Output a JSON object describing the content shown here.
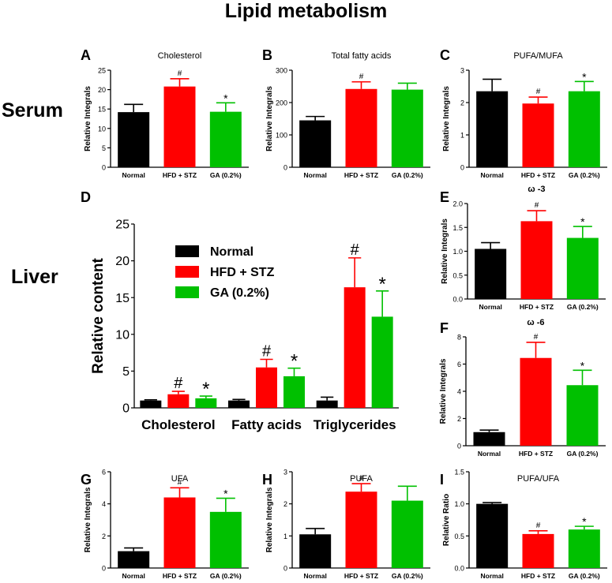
{
  "figure_title": "Lipid metabolism",
  "row_labels": {
    "serum": "Serum",
    "liver": "Liver"
  },
  "colors": {
    "normal": "#000000",
    "hfd": "#ff0000",
    "ga": "#00c000",
    "axis": "#000000"
  },
  "chart_data": [
    {
      "id": "A",
      "type": "bar",
      "letter": "A",
      "title": "Cholesterol",
      "categories": [
        "Normal",
        "HFD + STZ",
        "GA (0.2%)"
      ],
      "values": [
        14.2,
        20.8,
        14.3
      ],
      "errors": [
        2.0,
        2.0,
        2.3
      ],
      "marks": [
        "",
        "#",
        "*"
      ],
      "ylabel": "Relative Integrals",
      "ylim": [
        0,
        25
      ],
      "yticks": [
        0,
        5,
        10,
        15,
        20,
        25
      ],
      "ytick_labels": [
        "0",
        "5",
        "10",
        "15",
        "20",
        "25"
      ]
    },
    {
      "id": "B",
      "type": "bar",
      "letter": "B",
      "title": "Total fatty acids",
      "categories": [
        "Normal",
        "HFD + STZ",
        "GA (0.2%)"
      ],
      "values": [
        145,
        242,
        240
      ],
      "errors": [
        12,
        22,
        20
      ],
      "marks": [
        "",
        "#",
        ""
      ],
      "ylabel": "Relative Integrals",
      "ylim": [
        0,
        300
      ],
      "yticks": [
        0,
        100,
        200,
        300
      ],
      "ytick_labels": [
        "0",
        "100",
        "200",
        "300"
      ]
    },
    {
      "id": "C",
      "type": "bar",
      "letter": "C",
      "title": "PUFA/MUFA",
      "categories": [
        "Normal",
        "HFD + STZ",
        "GA (0.2%)"
      ],
      "values": [
        2.35,
        1.97,
        2.35
      ],
      "errors": [
        0.37,
        0.2,
        0.3
      ],
      "marks": [
        "",
        "#",
        "*"
      ],
      "ylabel": "Relative Integrals",
      "ylim": [
        0,
        3
      ],
      "yticks": [
        0,
        1,
        2,
        3
      ],
      "ytick_labels": [
        "0",
        "1",
        "2",
        "3"
      ]
    },
    {
      "id": "D",
      "type": "bar",
      "letter": "D",
      "title": "",
      "categories": [
        "Cholesterol",
        "Fatty acids",
        "Triglycerides"
      ],
      "series": [
        {
          "name": "Normal",
          "values": [
            1.0,
            1.0,
            1.0
          ],
          "errors": [
            0.1,
            0.15,
            0.45
          ],
          "marks": [
            "",
            "",
            ""
          ]
        },
        {
          "name": "HFD + STZ",
          "values": [
            1.85,
            5.5,
            16.4
          ],
          "errors": [
            0.4,
            1.1,
            4.0
          ],
          "marks": [
            "#",
            "#",
            "#"
          ]
        },
        {
          "name": "GA (0.2%)",
          "values": [
            1.3,
            4.3,
            12.4
          ],
          "errors": [
            0.3,
            1.1,
            3.5
          ],
          "marks": [
            "*",
            "*",
            "*"
          ]
        }
      ],
      "ylabel": "Relative content",
      "ylim": [
        0,
        25
      ],
      "yticks": [
        0,
        5,
        10,
        15,
        20,
        25
      ],
      "ytick_labels": [
        "0",
        "5",
        "10",
        "15",
        "20",
        "25"
      ],
      "legend": "top-left"
    },
    {
      "id": "E",
      "type": "bar",
      "letter": "E",
      "title": "ω -3",
      "categories": [
        "Normal",
        "HFD + STZ",
        "GA (0.2%)"
      ],
      "values": [
        1.05,
        1.63,
        1.28
      ],
      "errors": [
        0.13,
        0.22,
        0.24
      ],
      "marks": [
        "",
        "#",
        "*"
      ],
      "ylabel": "Relative Integrals",
      "ylim": [
        0,
        2
      ],
      "yticks": [
        0,
        0.5,
        1,
        1.5,
        2
      ],
      "ytick_labels": [
        "0.0",
        "0.5",
        "1.0",
        "1.5",
        "2.0"
      ]
    },
    {
      "id": "F",
      "type": "bar",
      "letter": "F",
      "title": "ω -6",
      "categories": [
        "Normal",
        "HFD + STZ",
        "GA (0.2%)"
      ],
      "values": [
        1.0,
        6.45,
        4.45
      ],
      "errors": [
        0.15,
        1.15,
        1.1
      ],
      "marks": [
        "",
        "#",
        "*"
      ],
      "ylabel": "Relative Integrals",
      "ylim": [
        0,
        8
      ],
      "yticks": [
        0,
        2,
        4,
        6,
        8
      ],
      "ytick_labels": [
        "0",
        "2",
        "4",
        "6",
        "8"
      ]
    },
    {
      "id": "G",
      "type": "bar",
      "letter": "G",
      "title": "UFA",
      "categories": [
        "Normal",
        "HFD + STZ",
        "GA (0.2%)"
      ],
      "values": [
        1.05,
        4.4,
        3.5
      ],
      "errors": [
        0.2,
        0.6,
        0.85
      ],
      "marks": [
        "",
        "#",
        "*"
      ],
      "ylabel": "Relative Integrals",
      "ylim": [
        0,
        6
      ],
      "yticks": [
        0,
        2,
        4,
        6
      ],
      "ytick_labels": [
        "0",
        "2",
        "4",
        "6"
      ]
    },
    {
      "id": "H",
      "type": "bar",
      "letter": "H",
      "title": "PUFA",
      "categories": [
        "Normal",
        "HFD + STZ",
        "GA (0.2%)"
      ],
      "values": [
        1.05,
        2.38,
        2.1
      ],
      "errors": [
        0.18,
        0.25,
        0.45
      ],
      "marks": [
        "",
        "#",
        ""
      ],
      "ylabel": "Relative Integrals",
      "ylim": [
        0,
        3
      ],
      "yticks": [
        0,
        1,
        2,
        3
      ],
      "ytick_labels": [
        "0",
        "1",
        "2",
        "3"
      ]
    },
    {
      "id": "I",
      "type": "bar",
      "letter": "I",
      "title": "PUFA/UFA",
      "categories": [
        "Normal",
        "HFD + STZ",
        "GA (0.2%)"
      ],
      "values": [
        1.0,
        0.53,
        0.6
      ],
      "errors": [
        0.02,
        0.05,
        0.05
      ],
      "marks": [
        "",
        "#",
        "*"
      ],
      "ylabel": "Relative Ratio",
      "ylim": [
        0,
        1.5
      ],
      "yticks": [
        0,
        0.5,
        1,
        1.5
      ],
      "ytick_labels": [
        "0.0",
        "0.5",
        "1.0",
        "1.5"
      ]
    }
  ]
}
